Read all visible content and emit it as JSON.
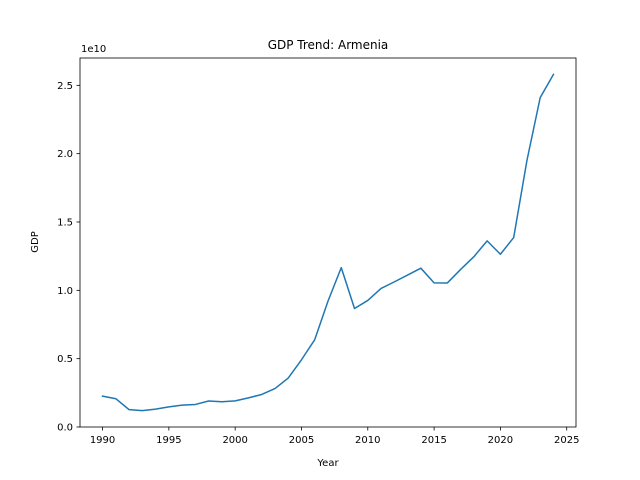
{
  "chart_data": {
    "type": "line",
    "title": "GDP Trend: Armenia",
    "xlabel": "Year",
    "ylabel": "GDP",
    "y_offset_label": "1e10",
    "xlim": [
      1988.3,
      2025.7
    ],
    "ylim": [
      0,
      2.7
    ],
    "x_ticks": [
      1990,
      1995,
      2000,
      2005,
      2010,
      2015,
      2020,
      2025
    ],
    "y_ticks": [
      0.0,
      0.5,
      1.0,
      1.5,
      2.0,
      2.5
    ],
    "x_tick_labels": [
      "1990",
      "1995",
      "2000",
      "2005",
      "2010",
      "2015",
      "2020",
      "2025"
    ],
    "y_tick_labels": [
      "0.0",
      "0.5",
      "1.0",
      "1.5",
      "2.0",
      "2.5"
    ],
    "grid": false,
    "line_color": "#1f77b4",
    "series": [
      {
        "x": [
          1990,
          1991,
          1992,
          1993,
          1994,
          1995,
          1996,
          1997,
          1998,
          1999,
          2000,
          2001,
          2002,
          2003,
          2004,
          2005,
          2006,
          2007,
          2008,
          2009,
          2010,
          2011,
          2012,
          2013,
          2014,
          2015,
          2016,
          2017,
          2018,
          2019,
          2020,
          2021,
          2022,
          2023,
          2024
        ],
        "values": [
          0.226,
          0.207,
          0.127,
          0.12,
          0.131,
          0.147,
          0.16,
          0.165,
          0.19,
          0.185,
          0.191,
          0.213,
          0.238,
          0.281,
          0.358,
          0.492,
          0.639,
          0.921,
          1.166,
          0.867,
          0.926,
          1.014,
          1.062,
          1.112,
          1.162,
          1.055,
          1.054,
          1.153,
          1.246,
          1.362,
          1.264,
          1.386,
          1.95,
          2.41,
          2.58
        ]
      }
    ]
  }
}
